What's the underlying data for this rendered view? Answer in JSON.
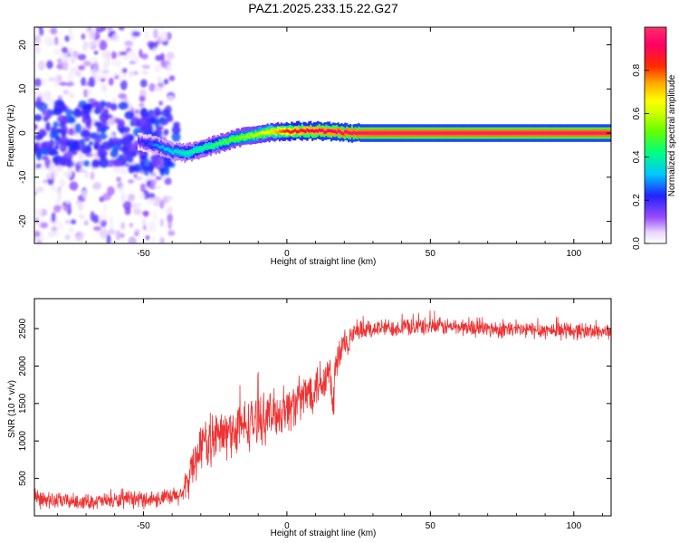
{
  "title": "PAZ1.2025.233.15.22.G27",
  "chart_data": [
    {
      "type": "heatmap",
      "title": "PAZ1.2025.233.15.22.G27",
      "xlabel": "Height of straight line (km)",
      "ylabel": "Frequency (Hz)",
      "xlim": [
        -88,
        113
      ],
      "ylim": [
        -25,
        24
      ],
      "xticks": [
        -50,
        0,
        50,
        100
      ],
      "yticks": [
        -20,
        -10,
        0,
        10,
        20
      ],
      "colorbar": {
        "label": "Normalized spectral amplitude",
        "range": [
          0,
          1
        ],
        "ticks": [
          0.0,
          0.2,
          0.4,
          0.6,
          0.8
        ],
        "tick_labels": [
          "0.0",
          "0.2",
          "0.4",
          "0.6",
          "0.8"
        ]
      },
      "ridge": {
        "x": [
          -52,
          -45,
          -40,
          -35,
          -30,
          -25,
          -20,
          -15,
          -10,
          -5,
          0,
          5,
          10,
          15,
          20,
          25,
          30,
          40,
          50,
          60,
          70,
          80,
          90,
          100,
          113
        ],
        "y": [
          -1.8,
          -3.0,
          -4.2,
          -4.5,
          -3.6,
          -2.6,
          -1.6,
          -0.8,
          -0.2,
          0.3,
          0.4,
          0.5,
          0.5,
          0.4,
          0.1,
          0.0,
          0.0,
          0.0,
          0.0,
          0.0,
          0.0,
          0.0,
          0.0,
          0.0,
          0.0
        ],
        "amplitude": [
          0.18,
          0.3,
          0.35,
          0.4,
          0.42,
          0.45,
          0.5,
          0.55,
          0.6,
          0.7,
          0.85,
          0.9,
          0.92,
          0.93,
          0.95,
          0.96,
          0.97,
          0.97,
          0.97,
          0.97,
          0.97,
          0.97,
          0.97,
          0.97,
          0.97
        ]
      },
      "noise_region": {
        "x_range": [
          -88,
          -40
        ],
        "y_range": [
          -25,
          24
        ],
        "amplitude_range": [
          0.02,
          0.18
        ]
      }
    },
    {
      "type": "line",
      "xlabel": "Height of straight line (km)",
      "ylabel": "SNR (10 * v/v)",
      "xlim": [
        -88,
        113
      ],
      "ylim": [
        0,
        2900
      ],
      "xticks": [
        -50,
        0,
        50,
        100
      ],
      "yticks": [
        500,
        1000,
        1500,
        2000,
        2500
      ],
      "color": "#ee3333",
      "envelope": {
        "x": [
          -88,
          -80,
          -70,
          -60,
          -50,
          -40,
          -36,
          -33,
          -30,
          -25,
          -20,
          -15,
          -10,
          -5,
          0,
          5,
          10,
          15,
          16,
          17,
          20,
          25,
          30,
          40,
          50,
          60,
          70,
          80,
          90,
          100,
          113
        ],
        "mean": [
          220,
          200,
          190,
          200,
          220,
          240,
          300,
          650,
          950,
          1050,
          1100,
          1200,
          1280,
          1350,
          1420,
          1550,
          1750,
          1900,
          1400,
          2000,
          2300,
          2450,
          2500,
          2520,
          2530,
          2520,
          2500,
          2480,
          2480,
          2470,
          2460
        ],
        "spread": [
          150,
          130,
          120,
          130,
          140,
          150,
          200,
          350,
          400,
          420,
          430,
          420,
          400,
          380,
          380,
          380,
          380,
          450,
          300,
          450,
          250,
          180,
          150,
          140,
          140,
          140,
          140,
          140,
          140,
          140,
          130
        ]
      }
    }
  ]
}
